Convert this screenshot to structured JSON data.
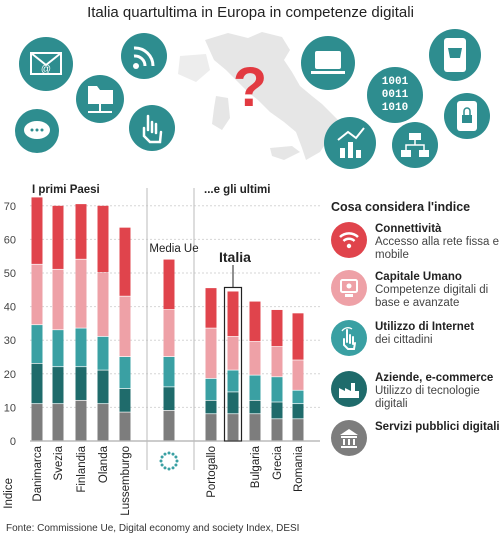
{
  "title": "Italia quartultima in Europa in competenze digitali",
  "chart_data": {
    "type": "bar",
    "stacked": true,
    "ylabel": "Indice",
    "ylim": [
      0,
      72
    ],
    "yticks": [
      0,
      10,
      20,
      30,
      40,
      50,
      60,
      70
    ],
    "groups": [
      {
        "label": "I primi Paesi",
        "categories": [
          "Danimarca",
          "Svezia",
          "Finlandia",
          "Olanda",
          "Lussemburgo"
        ]
      },
      {
        "label": "",
        "categories": [
          "Media Ue"
        ]
      },
      {
        "label": "...e gli ultimi",
        "categories": [
          "Portogallo",
          "Italia",
          "Bulgaria",
          "Grecia",
          "Romania"
        ]
      }
    ],
    "categories": [
      "Danimarca",
      "Svezia",
      "Finlandia",
      "Olanda",
      "Lussemburgo",
      "Media Ue",
      "Portogallo",
      "Italia",
      "Bulgaria",
      "Grecia",
      "Romania"
    ],
    "highlight": "Italia",
    "series": [
      {
        "name": "Servizi pubblici digitali",
        "color": "#7d7d7d",
        "values": [
          11,
          11,
          12,
          11,
          8.5,
          9,
          8,
          8,
          8,
          6.5,
          6.5
        ]
      },
      {
        "name": "Aziende, e-commerce",
        "color": "#1f6b6b",
        "values": [
          12,
          11,
          10,
          10,
          7,
          7,
          4,
          6.5,
          4,
          5,
          4.5
        ]
      },
      {
        "name": "Utilizzo di Internet",
        "color": "#3aa0a3",
        "values": [
          11.5,
          11,
          11.5,
          10,
          9.5,
          9,
          6.5,
          6.5,
          7.5,
          7.5,
          4
        ]
      },
      {
        "name": "Capitale Umano",
        "color": "#eea1a7",
        "values": [
          18,
          18,
          20.5,
          19,
          18,
          14,
          15,
          10,
          10,
          9,
          9
        ]
      },
      {
        "name": "Connettività",
        "color": "#e0444c",
        "values": [
          20,
          19,
          16.5,
          20,
          20.5,
          15,
          12,
          13.5,
          12,
          11,
          14
        ]
      }
    ]
  },
  "legend": {
    "title": "Cosa considera l'indice",
    "items": [
      {
        "name": "Connettività",
        "desc": "Accesso alla rete fissa e mobile",
        "color": "#e0444c",
        "icon": "wifi-icon"
      },
      {
        "name": "Capitale Umano",
        "desc": "Competenze digitali di base e avanzate",
        "color": "#eea1a7",
        "icon": "computer-user-icon"
      },
      {
        "name": "Utilizzo di Internet",
        "desc": "dei cittadini",
        "color": "#3aa0a3",
        "icon": "touch-hand-icon"
      },
      {
        "name": "Aziende, e-commerce",
        "desc": "Utilizzo di tecnologie digitali",
        "color": "#1f6b6b",
        "icon": "factory-icon"
      },
      {
        "name": "Servizi pubblici digitali",
        "desc": "",
        "color": "#7d7d7d",
        "icon": "public-building-icon"
      }
    ]
  },
  "illustration": {
    "binary_text": [
      "1001",
      "0011",
      "1010"
    ],
    "center_symbol": "?",
    "icons": [
      "email-icon",
      "rss-icon",
      "network-folder-icon",
      "chat-bubble-icon",
      "hand-pointer-icon",
      "italy-map-icon",
      "question-mark-icon",
      "laptop-icon",
      "binary-code-icon",
      "mobile-shopping-icon",
      "mobile-lock-icon",
      "analytics-icon",
      "network-diagram-icon"
    ]
  },
  "source": "Fonte: Commissione Ue, Digital economy and society Index, DESI"
}
